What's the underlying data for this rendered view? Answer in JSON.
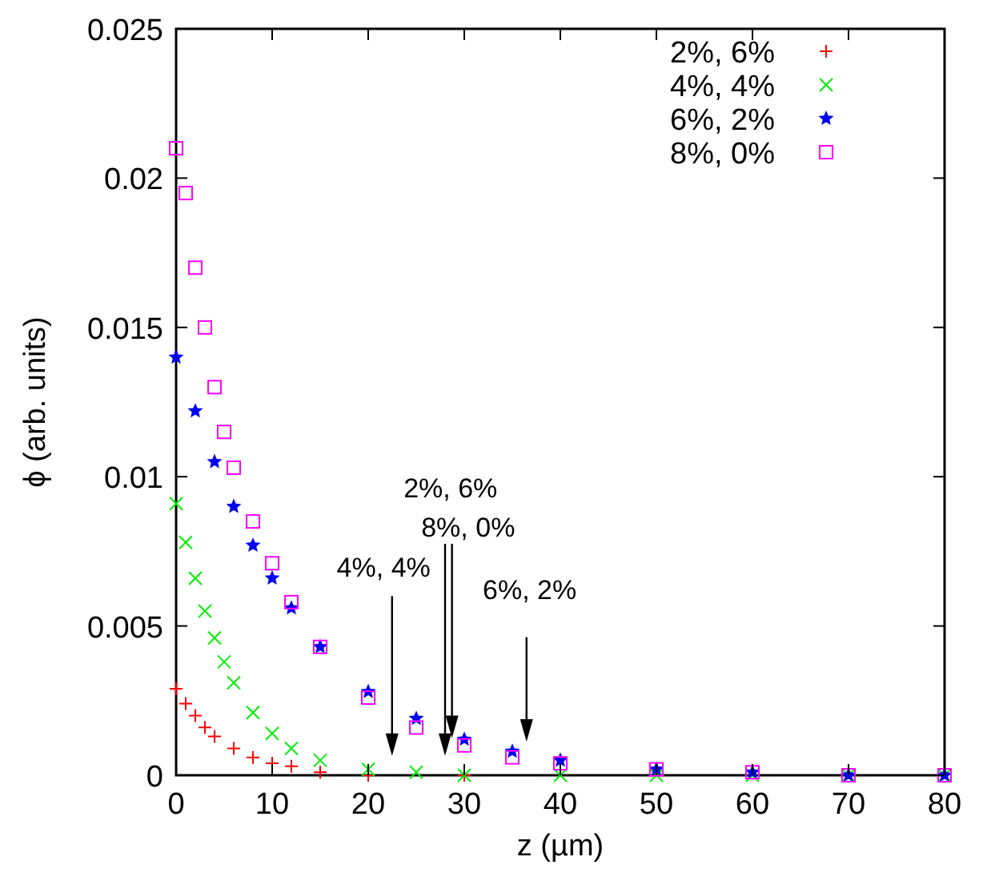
{
  "chart_data": {
    "type": "scatter",
    "xlabel": "z (µm)",
    "ylabel": "ϕ (arb. units)",
    "xlim": [
      0,
      80
    ],
    "xticks": [
      0,
      10,
      20,
      30,
      40,
      50,
      60,
      70,
      80
    ],
    "ylim": [
      0,
      0.025
    ],
    "yticks": [
      0,
      0.005,
      0.01,
      0.015,
      0.02,
      0.025
    ],
    "grid": false,
    "legend": "top right",
    "series": [
      {
        "name": "2%, 6%",
        "color": "#ff0000",
        "marker": "plus",
        "x": [
          0,
          1,
          2,
          3,
          4,
          6,
          8,
          10,
          12,
          15,
          20,
          30
        ],
        "values": [
          0.0029,
          0.0024,
          0.002,
          0.0016,
          0.0013,
          0.0009,
          0.0006,
          0.0004,
          0.0003,
          0.0001,
          0,
          0
        ]
      },
      {
        "name": "4%, 4%",
        "color": "#00ee00",
        "marker": "cross",
        "x": [
          0,
          1,
          2,
          3,
          4,
          5,
          6,
          8,
          10,
          12,
          15,
          20,
          25,
          30,
          40,
          50,
          60,
          70,
          80
        ],
        "values": [
          0.0091,
          0.0078,
          0.0066,
          0.0055,
          0.0046,
          0.0038,
          0.0031,
          0.0021,
          0.0014,
          0.0009,
          0.0005,
          0.0002,
          0.0001,
          0,
          0,
          0,
          0,
          0,
          0
        ]
      },
      {
        "name": "6%, 2%",
        "color": "#0000ee",
        "marker": "star",
        "x": [
          0,
          2,
          4,
          6,
          8,
          10,
          12,
          15,
          20,
          25,
          30,
          35,
          40,
          50,
          60,
          70,
          80
        ],
        "values": [
          0.014,
          0.0122,
          0.0105,
          0.009,
          0.0077,
          0.0066,
          0.0056,
          0.0043,
          0.0028,
          0.0019,
          0.0012,
          0.0008,
          0.0005,
          0.0002,
          0.0001,
          0,
          0
        ]
      },
      {
        "name": "8%, 0%",
        "color": "#ff00ff",
        "marker": "square",
        "x": [
          0,
          1,
          2,
          3,
          4,
          5,
          6,
          8,
          10,
          12,
          15,
          20,
          25,
          30,
          35,
          40,
          50,
          60,
          70,
          80
        ],
        "values": [
          0.021,
          0.0195,
          0.017,
          0.015,
          0.013,
          0.0115,
          0.0103,
          0.0085,
          0.0071,
          0.0058,
          0.0043,
          0.0026,
          0.0016,
          0.001,
          0.0006,
          0.0004,
          0.0002,
          0.0001,
          0,
          0
        ]
      }
    ],
    "annotations": [
      "4%, 4%",
      "2%, 6%",
      "8%, 0%",
      "6%, 2%"
    ]
  }
}
